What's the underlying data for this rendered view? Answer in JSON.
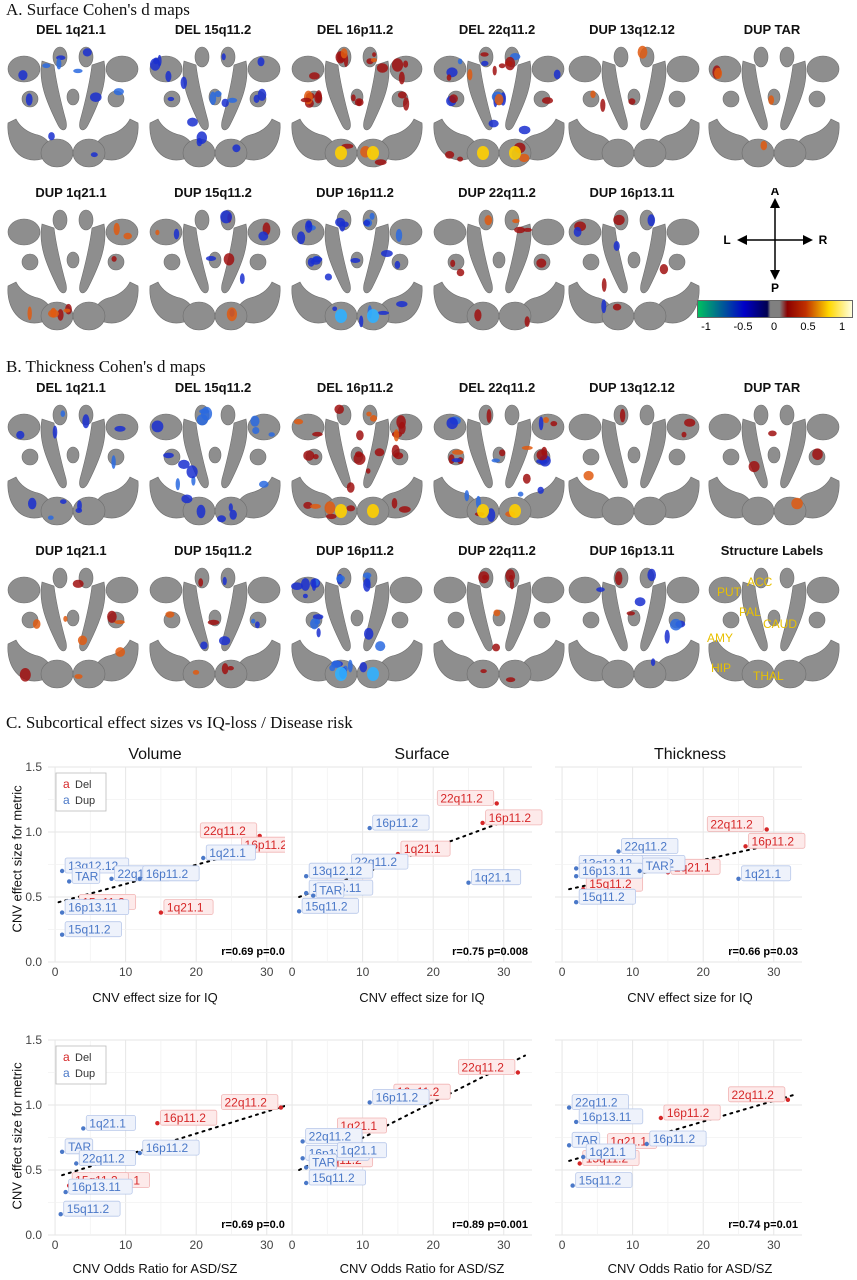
{
  "sections": {
    "a_title": "A. Surface Cohen's d maps",
    "b_title": "B. Thickness Cohen's d maps",
    "c_title": "C. Subcortical effect sizes vs IQ-loss / Disease risk"
  },
  "surface_maps": {
    "row1": [
      "DEL 1q21.1",
      "DEL 15q11.2",
      "DEL 16p11.2",
      "DEL 22q11.2",
      "DUP 13q12.12",
      "DUP TAR"
    ],
    "row2": [
      "DUP 1q21.1",
      "DUP 15q11.2",
      "DUP 16p11.2",
      "DUP 22q11.2",
      "DUP 16p13.11"
    ]
  },
  "thickness_maps": {
    "row1": [
      "DEL 1q21.1",
      "DEL 15q11.2",
      "DEL 16p11.2",
      "DEL 22q11.2",
      "DUP 13q12.12",
      "DUP TAR"
    ],
    "row2": [
      "DUP 1q21.1",
      "DUP 15q11.2",
      "DUP 16p11.2",
      "DUP 22q11.2",
      "DUP 16p13.11",
      "Structure Labels"
    ]
  },
  "orientation": {
    "up": "A",
    "down": "P",
    "left": "L",
    "right": "R"
  },
  "colorbar": {
    "ticks": [
      "-1",
      "-0.5",
      "0",
      "0.5",
      "1"
    ],
    "colors": [
      "#00c060",
      "#0000c8",
      "#808080",
      "#8b0000",
      "#ffd700",
      "#ffffe0"
    ]
  },
  "structure_labels": [
    "PUT",
    "ACC",
    "PAL",
    "CAUD",
    "AMY",
    "HIP",
    "THAL"
  ],
  "colors": {
    "del": "#d62728",
    "dup": "#4a78c8",
    "brain": "#8e8e8e"
  },
  "legend": {
    "del": "Del",
    "dup": "Dup",
    "glyph": "a"
  },
  "panel_titles": [
    "Volume",
    "Surface",
    "Thickness"
  ],
  "row_ylabel": "CNV effect size for metric",
  "row_xlabels": [
    "CNV effect size for IQ",
    "CNV Odds Ratio for ASD/SZ"
  ],
  "chart_data": [
    {
      "type": "scatter",
      "title": "Volume",
      "xlabel": "CNV effect size for IQ",
      "ylabel": "CNV effect size for metric",
      "xlim": [
        -1,
        34
      ],
      "ylim": [
        0,
        1.5
      ],
      "xticks": [
        0,
        10,
        20,
        30
      ],
      "yticks": [
        0.0,
        0.5,
        1.0,
        1.5
      ],
      "grid": true,
      "legend": "top-left",
      "stat": "r=0.69 p=0.02",
      "trend": [
        [
          0.5,
          0.46
        ],
        [
          33,
          0.94
        ]
      ],
      "series": [
        {
          "name": "Del",
          "points": [
            {
              "label": "22q11.2",
              "x": 29,
              "y": 0.97
            },
            {
              "label": "16p11.2",
              "x": 26,
              "y": 0.86
            },
            {
              "label": "1q21.1",
              "x": 15,
              "y": 0.38
            },
            {
              "label": "15q11.2",
              "x": 3,
              "y": 0.42
            }
          ]
        },
        {
          "name": "Dup",
          "points": [
            {
              "label": "13q12.12",
              "x": 1,
              "y": 0.7
            },
            {
              "label": "TAR",
              "x": 2,
              "y": 0.62
            },
            {
              "label": "22q11.2",
              "x": 8,
              "y": 0.64
            },
            {
              "label": "16p11.2",
              "x": 12,
              "y": 0.64
            },
            {
              "label": "1q21.1",
              "x": 21,
              "y": 0.8
            },
            {
              "label": "16p13.11",
              "x": 1,
              "y": 0.38
            },
            {
              "label": "15q11.2",
              "x": 1,
              "y": 0.21
            }
          ]
        }
      ]
    },
    {
      "type": "scatter",
      "title": "Surface",
      "xlabel": "CNV effect size for IQ",
      "ylabel": "",
      "xlim": [
        -1,
        34
      ],
      "ylim": [
        0,
        1.5
      ],
      "xticks": [
        0,
        10,
        20,
        30
      ],
      "yticks": [
        0.0,
        0.5,
        1.0,
        1.5
      ],
      "grid": true,
      "stat": "r=0.75 p=0.008",
      "trend": [
        [
          1,
          0.5
        ],
        [
          33,
          1.14
        ]
      ],
      "series": [
        {
          "name": "Del",
          "points": [
            {
              "label": "22q11.2",
              "x": 29,
              "y": 1.22
            },
            {
              "label": "16p11.2",
              "x": 27,
              "y": 1.07
            },
            {
              "label": "1q21.1",
              "x": 15,
              "y": 0.83
            },
            {
              "label": "15q11.2",
              "x": 3,
              "y": 0.53
            }
          ]
        },
        {
          "name": "Dup",
          "points": [
            {
              "label": "16p11.2",
              "x": 11,
              "y": 1.03
            },
            {
              "label": "22q11.2",
              "x": 8,
              "y": 0.73
            },
            {
              "label": "13q12.12",
              "x": 2,
              "y": 0.66
            },
            {
              "label": "16p13.11",
              "x": 2,
              "y": 0.53
            },
            {
              "label": "TAR",
              "x": 3,
              "y": 0.51
            },
            {
              "label": "15q11.2",
              "x": 1,
              "y": 0.39
            },
            {
              "label": "1q21.1",
              "x": 25,
              "y": 0.61
            }
          ]
        }
      ]
    },
    {
      "type": "scatter",
      "title": "Thickness",
      "xlabel": "CNV effect size for IQ",
      "ylabel": "",
      "xlim": [
        -1,
        34
      ],
      "ylim": [
        0,
        1.5
      ],
      "xticks": [
        0,
        10,
        20,
        30
      ],
      "yticks": [
        0.0,
        0.5,
        1.0,
        1.5
      ],
      "grid": true,
      "stat": "r=0.66 p=0.03",
      "trend": [
        [
          1,
          0.56
        ],
        [
          33,
          0.94
        ]
      ],
      "series": [
        {
          "name": "Del",
          "points": [
            {
              "label": "22q11.2",
              "x": 29,
              "y": 1.02
            },
            {
              "label": "16p11.2",
              "x": 26,
              "y": 0.89
            },
            {
              "label": "1q21.1",
              "x": 15,
              "y": 0.69
            },
            {
              "label": "15q11.2",
              "x": 3,
              "y": 0.56
            }
          ]
        },
        {
          "name": "Dup",
          "points": [
            {
              "label": "22q11.2",
              "x": 8,
              "y": 0.85
            },
            {
              "label": "16p11.2",
              "x": 9,
              "y": 0.72
            },
            {
              "label": "13q12.12",
              "x": 2,
              "y": 0.72
            },
            {
              "label": "16p13.11",
              "x": 2,
              "y": 0.66
            },
            {
              "label": "TAR",
              "x": 11,
              "y": 0.7
            },
            {
              "label": "15q11.2",
              "x": 2,
              "y": 0.46
            },
            {
              "label": "1q21.1",
              "x": 25,
              "y": 0.64
            }
          ]
        }
      ]
    },
    {
      "type": "scatter",
      "title": "",
      "xlabel": "CNV Odds Ratio for ASD/SZ",
      "ylabel": "CNV effect size for metric",
      "xlim": [
        -1,
        34
      ],
      "ylim": [
        0,
        1.5
      ],
      "xticks": [
        0,
        10,
        20,
        30
      ],
      "yticks": [
        0.0,
        0.5,
        1.0,
        1.5
      ],
      "grid": true,
      "legend": "top-left",
      "stat": "r=0.69 p=0.03",
      "trend": [
        [
          1,
          0.46
        ],
        [
          33,
          1.0
        ]
      ],
      "series": [
        {
          "name": "Del",
          "points": [
            {
              "label": "22q11.2",
              "x": 32,
              "y": 0.98
            },
            {
              "label": "16p11.2",
              "x": 14.5,
              "y": 0.86
            },
            {
              "label": "1q21.1",
              "x": 6,
              "y": 0.38
            },
            {
              "label": "15q11.2",
              "x": 2,
              "y": 0.38
            }
          ]
        },
        {
          "name": "Dup",
          "points": [
            {
              "label": "1q21.1",
              "x": 4,
              "y": 0.82
            },
            {
              "label": "TAR",
              "x": 1,
              "y": 0.64
            },
            {
              "label": "22q11.2",
              "x": 3,
              "y": 0.55
            },
            {
              "label": "16p11.2",
              "x": 12,
              "y": 0.63
            },
            {
              "label": "16p13.11",
              "x": 1.5,
              "y": 0.33
            },
            {
              "label": "15q11.2",
              "x": 0.8,
              "y": 0.16
            }
          ]
        }
      ]
    },
    {
      "type": "scatter",
      "title": "",
      "xlabel": "CNV Odds Ratio for ASD/SZ",
      "ylabel": "",
      "xlim": [
        -1,
        34
      ],
      "ylim": [
        0,
        1.5
      ],
      "xticks": [
        0,
        10,
        20,
        30
      ],
      "yticks": [
        0.0,
        0.5,
        1.0,
        1.5
      ],
      "grid": true,
      "stat": "r=0.89 p=0.001",
      "trend": [
        [
          1,
          0.5
        ],
        [
          33,
          1.38
        ]
      ],
      "series": [
        {
          "name": "Del",
          "points": [
            {
              "label": "22q11.2",
              "x": 32,
              "y": 1.25
            },
            {
              "label": "16p11.2",
              "x": 14,
              "y": 1.06
            },
            {
              "label": "1q21.1",
              "x": 6,
              "y": 0.8
            },
            {
              "label": "15q11.2",
              "x": 3,
              "y": 0.54
            }
          ]
        },
        {
          "name": "Dup",
          "points": [
            {
              "label": "16p11.2",
              "x": 11,
              "y": 1.02
            },
            {
              "label": "22q11.2",
              "x": 1.5,
              "y": 0.72
            },
            {
              "label": "16p13.11",
              "x": 1.5,
              "y": 0.59
            },
            {
              "label": "1q21.1",
              "x": 6,
              "y": 0.61
            },
            {
              "label": "TAR",
              "x": 2,
              "y": 0.52
            },
            {
              "label": "15q11.2",
              "x": 2,
              "y": 0.4
            }
          ]
        }
      ]
    },
    {
      "type": "scatter",
      "title": "",
      "xlabel": "CNV Odds Ratio for ASD/SZ",
      "ylabel": "",
      "xlim": [
        -1,
        34
      ],
      "ylim": [
        0,
        1.5
      ],
      "xticks": [
        0,
        10,
        20,
        30
      ],
      "yticks": [
        0.0,
        0.5,
        1.0,
        1.5
      ],
      "grid": true,
      "stat": "r=0.74 p=0.01",
      "trend": [
        [
          1,
          0.57
        ],
        [
          33,
          1.08
        ]
      ],
      "series": [
        {
          "name": "Del",
          "points": [
            {
              "label": "22q11.2",
              "x": 32,
              "y": 1.04
            },
            {
              "label": "16p11.2",
              "x": 14,
              "y": 0.9
            },
            {
              "label": "1q21.1",
              "x": 6,
              "y": 0.68
            },
            {
              "label": "15q11.2",
              "x": 2.5,
              "y": 0.55
            }
          ]
        },
        {
          "name": "Dup",
          "points": [
            {
              "label": "22q11.2",
              "x": 1,
              "y": 0.98
            },
            {
              "label": "16p13.11",
              "x": 2,
              "y": 0.87
            },
            {
              "label": "TAR",
              "x": 1,
              "y": 0.69
            },
            {
              "label": "16p11.2",
              "x": 12,
              "y": 0.7
            },
            {
              "label": "1q21.1",
              "x": 3,
              "y": 0.6
            },
            {
              "label": "15q11.2",
              "x": 1.5,
              "y": 0.38
            }
          ]
        }
      ]
    }
  ]
}
